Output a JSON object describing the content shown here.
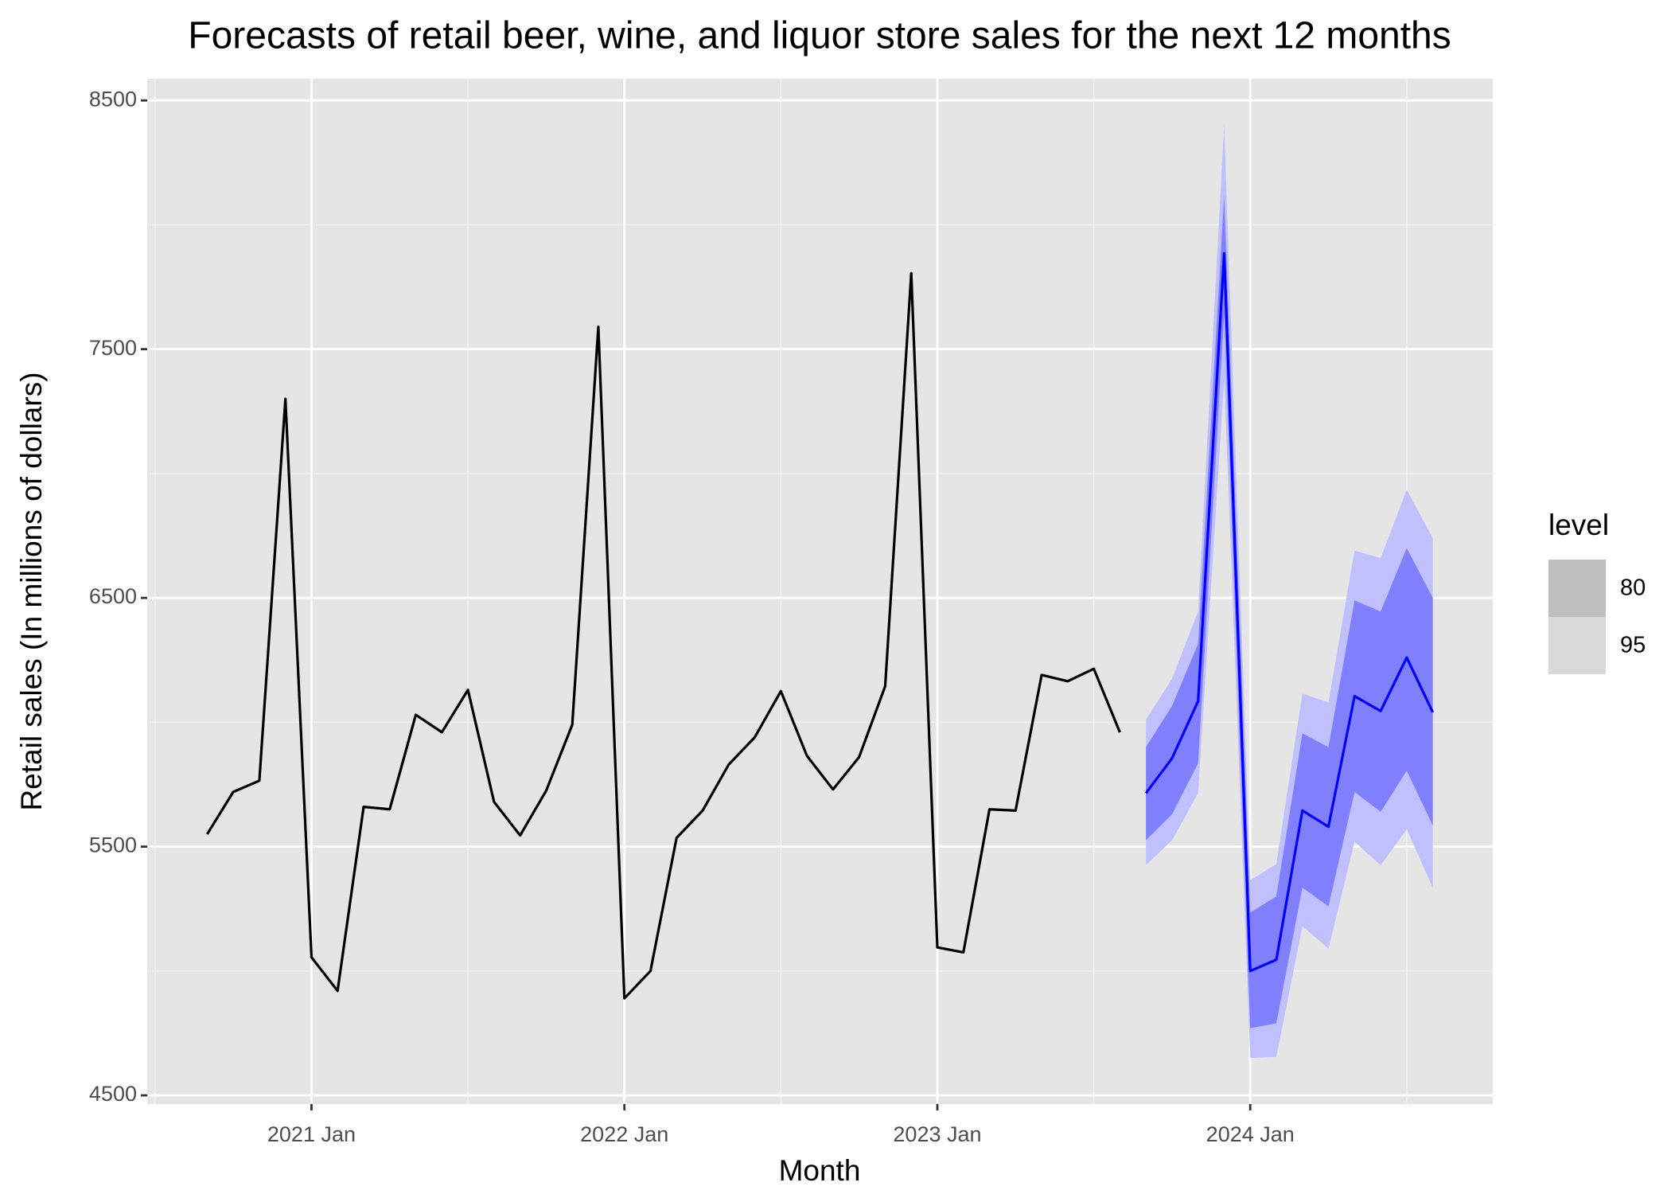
{
  "chart_data": {
    "type": "line",
    "title": "Forecasts of retail beer, wine, and liquor store sales for the next 12 months",
    "x_label": "Month",
    "y_label": "Retail sales (In millions of dollars)",
    "x": [
      "2020 Sep",
      "2020 Oct",
      "2020 Nov",
      "2020 Dec",
      "2021 Jan",
      "2021 Feb",
      "2021 Mar",
      "2021 Apr",
      "2021 May",
      "2021 Jun",
      "2021 Jul",
      "2021 Aug",
      "2021 Sep",
      "2021 Oct",
      "2021 Nov",
      "2021 Dec",
      "2022 Jan",
      "2022 Feb",
      "2022 Mar",
      "2022 Apr",
      "2022 May",
      "2022 Jun",
      "2022 Jul",
      "2022 Aug",
      "2022 Sep",
      "2022 Oct",
      "2022 Nov",
      "2022 Dec",
      "2023 Jan",
      "2023 Feb",
      "2023 Mar",
      "2023 Apr",
      "2023 May",
      "2023 Jun",
      "2023 Jul",
      "2023 Aug"
    ],
    "values": [
      5550,
      5720,
      5765,
      7300,
      5055,
      4920,
      5660,
      5650,
      6030,
      5960,
      6130,
      5680,
      5545,
      5725,
      5990,
      7590,
      4890,
      5000,
      5535,
      5645,
      5830,
      5940,
      6125,
      5865,
      5730,
      5860,
      6145,
      7805,
      5095,
      5075,
      5650,
      5645,
      6190,
      6165,
      6215,
      5960
    ],
    "color": "#000000",
    "forecast": {
      "x": [
        "2023 Sep",
        "2023 Oct",
        "2023 Nov",
        "2023 Dec",
        "2024 Jan",
        "2024 Feb",
        "2024 Mar",
        "2024 Apr",
        "2024 May",
        "2024 Jun",
        "2024 Jul",
        "2024 Aug"
      ],
      "values": [
        5715,
        5855,
        6085,
        7885,
        5000,
        5045,
        5645,
        5580,
        6105,
        6045,
        6260,
        6040
      ],
      "color": "#0000ff"
    },
    "legend_title": "level",
    "intervals": [
      {
        "level": 80,
        "color": "#8080ff",
        "legend_color": "#bfbfbf",
        "lower": [
          5525,
          5630,
          5835,
          7645,
          4770,
          4790,
          5335,
          5260,
          5720,
          5640,
          5805,
          5585
        ],
        "upper": [
          5900,
          6065,
          6315,
          8120,
          5235,
          5300,
          5955,
          5900,
          6490,
          6445,
          6700,
          6500
        ]
      },
      {
        "level": 95,
        "color": "#c0c0ff",
        "legend_color": "#d9d9d9",
        "lower": [
          5425,
          5525,
          5715,
          7380,
          4650,
          4655,
          5180,
          5090,
          5520,
          5425,
          5570,
          5335
        ],
        "upper": [
          6010,
          6175,
          6445,
          8405,
          5365,
          5430,
          6115,
          6080,
          6690,
          6660,
          6935,
          6740
        ]
      }
    ],
    "ylim": [
      4465,
      8587
    ],
    "yticks": [
      4500,
      5500,
      6500,
      7500,
      8500
    ],
    "minor_yticks": [
      5000,
      6000,
      7000,
      8000
    ],
    "xticks": [
      "2021 Jan",
      "2022 Jan",
      "2023 Jan",
      "2024 Jan"
    ],
    "grid": true
  }
}
